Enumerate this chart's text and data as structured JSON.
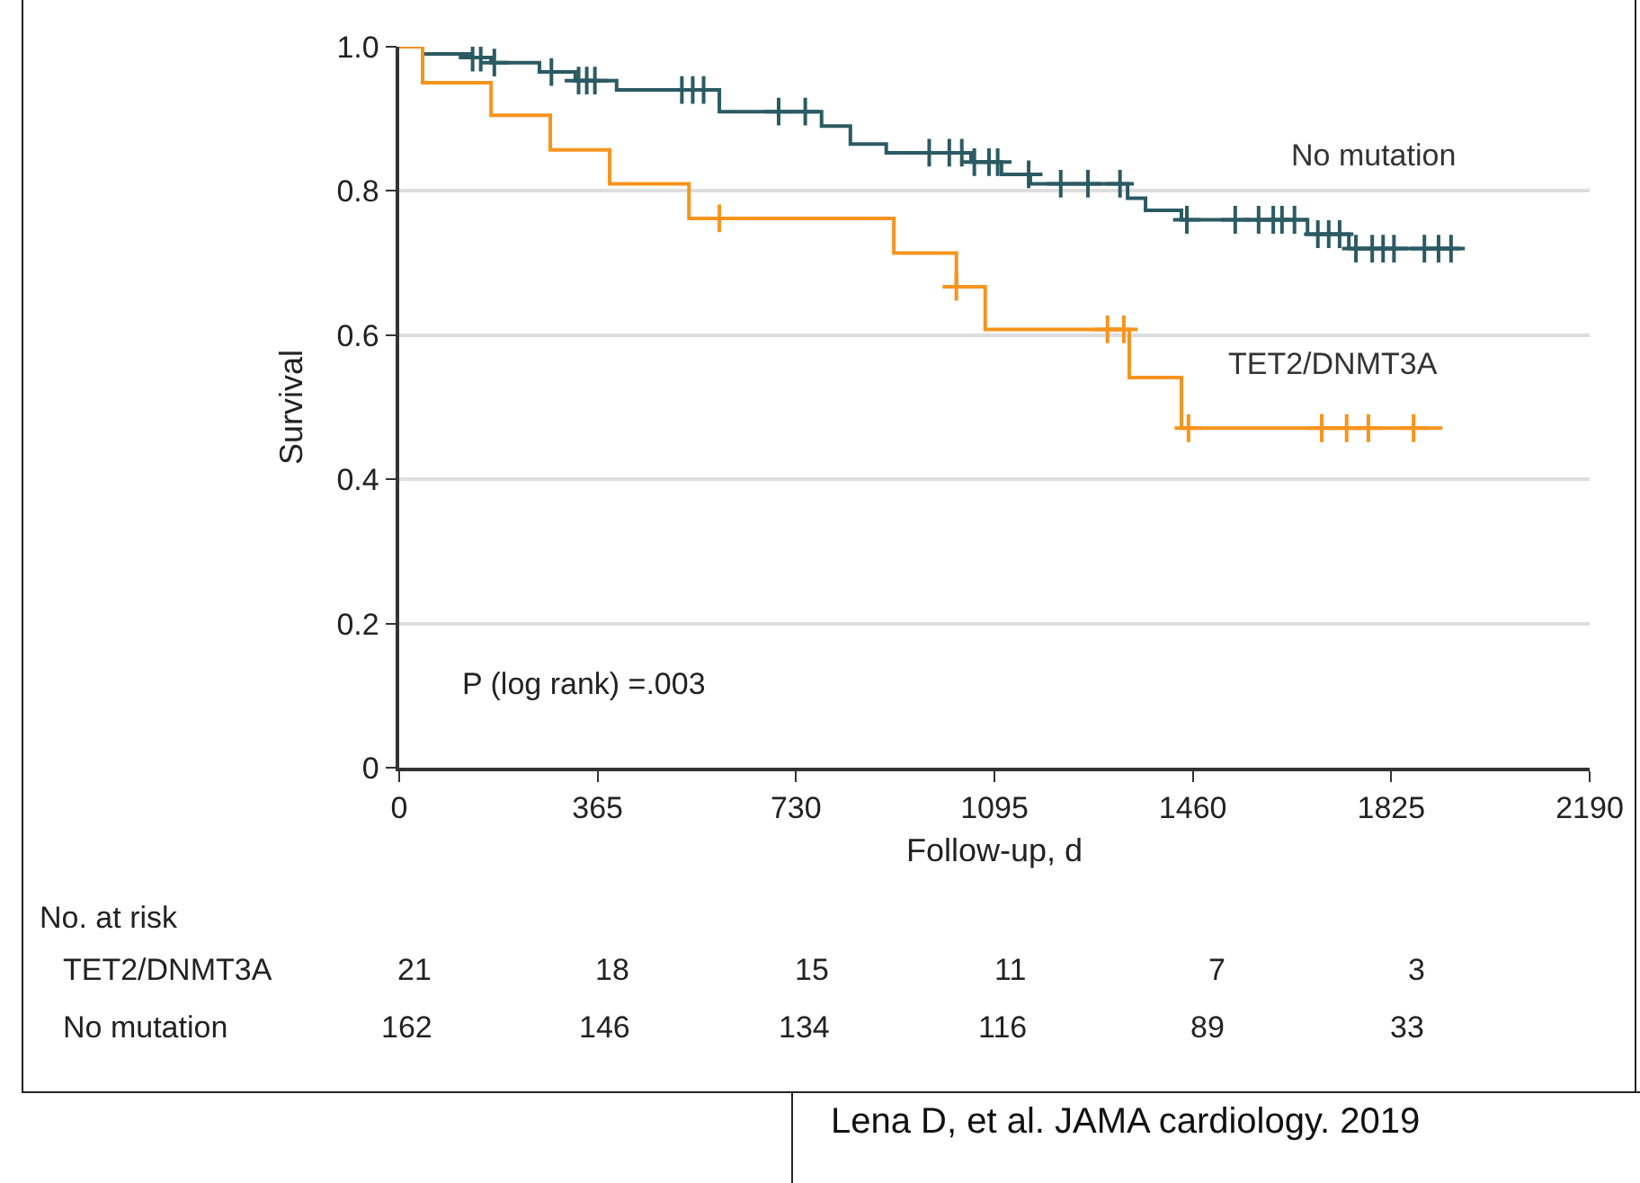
{
  "chart_data": {
    "type": "step",
    "xlabel": "Follow-up, d",
    "ylabel": "Survival",
    "xlim": [
      0,
      2190
    ],
    "xticks": [
      0,
      365,
      730,
      1095,
      1460,
      1825,
      2190
    ],
    "ylim": [
      0,
      1
    ],
    "yticks": [
      0,
      0.2,
      0.4,
      0.6,
      0.8,
      {
        "value": 1,
        "label": "1.0"
      }
    ],
    "grid": "y",
    "legend": false,
    "line_style": "solid",
    "series": [
      {
        "name": "No mutation",
        "color": "#2b5a63",
        "x": [
          0,
          43,
          132,
          169,
          258,
          324,
          400,
          589,
          777,
          830,
          896,
          1052,
          1108,
          1161,
          1340,
          1373,
          1439,
          1671,
          1747,
          1952
        ],
        "values": [
          1,
          0.99,
          0.985,
          0.978,
          0.965,
          0.953,
          0.94,
          0.91,
          0.89,
          0.865,
          0.853,
          0.84,
          0.823,
          0.81,
          0.79,
          0.773,
          0.76,
          0.74,
          0.72,
          0.72
        ]
      },
      {
        "name": "TET2/DNMT3A",
        "color": "#f7941d",
        "x": [
          0,
          43,
          169,
          278,
          387,
          533,
          910,
          1025,
          1078,
          1343,
          1439,
          1919
        ],
        "values": [
          1,
          0.95,
          0.905,
          0.857,
          0.81,
          0.762,
          0.714,
          0.667,
          0.608,
          0.541,
          0.471,
          0.471
        ]
      },
      {
        "type": "scatter",
        "marker": "cross",
        "color": "#2b5a63",
        "x": [
          135,
          150,
          175,
          280,
          330,
          345,
          360,
          520,
          540,
          560,
          698,
          747,
          975,
          1012,
          1035,
          1058,
          1085,
          1101,
          1158,
          1217,
          1267,
          1326,
          1449,
          1538,
          1581,
          1608,
          1624,
          1647,
          1690,
          1710,
          1730,
          1760,
          1790,
          1810,
          1830,
          1886,
          1912,
          1935
        ],
        "values": [
          0.985,
          0.985,
          0.978,
          0.965,
          0.953,
          0.953,
          0.953,
          0.94,
          0.94,
          0.94,
          0.91,
          0.91,
          0.853,
          0.853,
          0.853,
          0.84,
          0.84,
          0.84,
          0.823,
          0.81,
          0.81,
          0.81,
          0.76,
          0.76,
          0.76,
          0.76,
          0.76,
          0.76,
          0.74,
          0.74,
          0.74,
          0.72,
          0.72,
          0.72,
          0.72,
          0.72,
          0.72,
          0.72
        ]
      },
      {
        "type": "scatter",
        "marker": "cross",
        "color": "#f7941d",
        "x": [
          589,
          1025,
          1303,
          1333,
          1452,
          1697,
          1743,
          1783,
          1866
        ],
        "values": [
          0.762,
          0.667,
          0.608,
          0.608,
          0.471,
          0.471,
          0.471,
          0.471,
          0.471
        ]
      }
    ],
    "annotations": [
      "P (log rank) =.003",
      "No. at risk",
      "TET2/DNMT3A",
      "21",
      "18",
      "15",
      "11",
      "7",
      "3",
      "No mutation",
      "162",
      "146",
      "134",
      "116",
      "89",
      "33",
      "Lena D, et al. JAMA cardiology. 2019"
    ]
  }
}
